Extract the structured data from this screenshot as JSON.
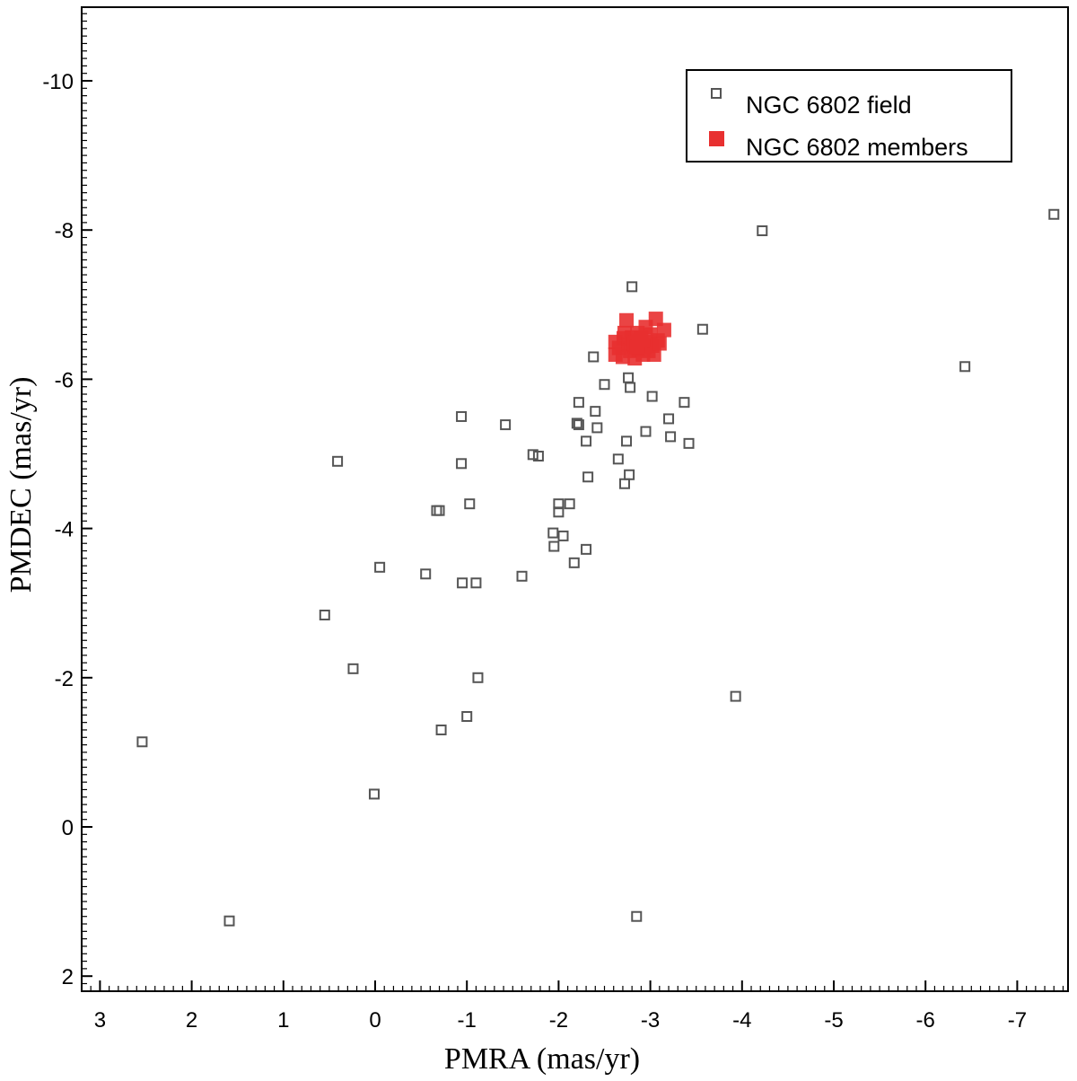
{
  "chart_data": {
    "type": "scatter",
    "title": "",
    "xlabel": "PMRA (mas/yr)",
    "ylabel": "PMDEC (mas/yr)",
    "xlim": [
      3.2,
      -7.6
    ],
    "ylim": [
      2.1,
      -11
    ],
    "x_inverted": true,
    "y_inverted": true,
    "x_ticks": [
      3,
      2,
      1,
      0,
      -1,
      -2,
      -3,
      -4,
      -5,
      -6,
      -7
    ],
    "x_tick_labels": [
      "3",
      "2",
      "1",
      "0",
      "-1",
      "-2",
      "-3",
      "-4",
      "-5",
      "-6",
      "-7"
    ],
    "y_ticks": [
      -10,
      -8,
      -6,
      -4,
      -2,
      0,
      2
    ],
    "y_tick_labels": [
      "-10",
      "-8",
      "-6",
      "-4",
      "-2",
      "0",
      "2"
    ],
    "grid": false,
    "legend_position": "top-right",
    "series": [
      {
        "name": "NGC 6802 field",
        "marker": "open-square",
        "color": "#555555",
        "points": [
          [
            2.54,
            -1.14
          ],
          [
            1.59,
            1.26
          ],
          [
            0.55,
            -2.84
          ],
          [
            0.41,
            -4.9
          ],
          [
            0.24,
            -2.12
          ],
          [
            0.01,
            -0.44
          ],
          [
            -0.05,
            -3.48
          ],
          [
            -0.55,
            -3.39
          ],
          [
            -0.67,
            -4.24
          ],
          [
            -0.7,
            -4.24
          ],
          [
            -0.72,
            -1.3
          ],
          [
            -0.94,
            -5.5
          ],
          [
            -0.94,
            -4.87
          ],
          [
            -0.95,
            -3.27
          ],
          [
            -1.0,
            -1.48
          ],
          [
            -1.03,
            -4.33
          ],
          [
            -1.1,
            -3.27
          ],
          [
            -1.12,
            -2.0
          ],
          [
            -1.42,
            -5.39
          ],
          [
            -1.6,
            -3.36
          ],
          [
            -1.72,
            -4.99
          ],
          [
            -1.78,
            -4.97
          ],
          [
            -1.94,
            -3.94
          ],
          [
            -1.95,
            -3.76
          ],
          [
            -2.0,
            -4.33
          ],
          [
            -2.0,
            -4.22
          ],
          [
            -2.05,
            -3.9
          ],
          [
            -2.12,
            -4.33
          ],
          [
            -2.17,
            -3.54
          ],
          [
            -2.2,
            -5.41
          ],
          [
            -2.22,
            -5.69
          ],
          [
            -2.22,
            -5.39
          ],
          [
            -2.3,
            -5.17
          ],
          [
            -2.3,
            -3.72
          ],
          [
            -2.32,
            -4.69
          ],
          [
            -2.38,
            -6.3
          ],
          [
            -2.4,
            -5.57
          ],
          [
            -2.42,
            -5.35
          ],
          [
            -2.5,
            -5.93
          ],
          [
            -2.65,
            -4.93
          ],
          [
            -2.72,
            -4.6
          ],
          [
            -2.74,
            -5.17
          ],
          [
            -2.76,
            -6.02
          ],
          [
            -2.77,
            -4.72
          ],
          [
            -2.78,
            -5.89
          ],
          [
            -2.8,
            -7.24
          ],
          [
            -2.85,
            1.2
          ],
          [
            -2.95,
            -5.3
          ],
          [
            -3.02,
            -5.77
          ],
          [
            -3.2,
            -5.47
          ],
          [
            -3.22,
            -5.23
          ],
          [
            -3.37,
            -5.69
          ],
          [
            -3.42,
            -5.14
          ],
          [
            -3.57,
            -6.67
          ],
          [
            -3.93,
            -1.75
          ],
          [
            -4.22,
            -7.99
          ],
          [
            -6.43,
            -6.17
          ],
          [
            -7.4,
            -8.21
          ]
        ]
      },
      {
        "name": "NGC 6802 members",
        "marker": "filled-square",
        "color": "#e83030",
        "points": [
          [
            -2.62,
            -6.33
          ],
          [
            -2.62,
            -6.5
          ],
          [
            -2.66,
            -6.42
          ],
          [
            -2.7,
            -6.3
          ],
          [
            -2.71,
            -6.55
          ],
          [
            -2.72,
            -6.62
          ],
          [
            -2.74,
            -6.79
          ],
          [
            -2.76,
            -6.47
          ],
          [
            -2.78,
            -6.38
          ],
          [
            -2.8,
            -6.56
          ],
          [
            -2.82,
            -6.45
          ],
          [
            -2.83,
            -6.28
          ],
          [
            -2.84,
            -6.5
          ],
          [
            -2.86,
            -6.62
          ],
          [
            -2.87,
            -6.4
          ],
          [
            -2.88,
            -6.47
          ],
          [
            -2.9,
            -6.55
          ],
          [
            -2.92,
            -6.33
          ],
          [
            -2.94,
            -6.44
          ],
          [
            -2.95,
            -6.7
          ],
          [
            -2.96,
            -6.5
          ],
          [
            -2.98,
            -6.38
          ],
          [
            -3.0,
            -6.6
          ],
          [
            -3.02,
            -6.45
          ],
          [
            -3.04,
            -6.33
          ],
          [
            -3.06,
            -6.81
          ],
          [
            -3.08,
            -6.52
          ],
          [
            -3.1,
            -6.48
          ],
          [
            -3.15,
            -6.66
          ],
          [
            -2.82,
            -6.48
          ],
          [
            -2.85,
            -6.43
          ],
          [
            -2.88,
            -6.52
          ]
        ]
      }
    ]
  }
}
